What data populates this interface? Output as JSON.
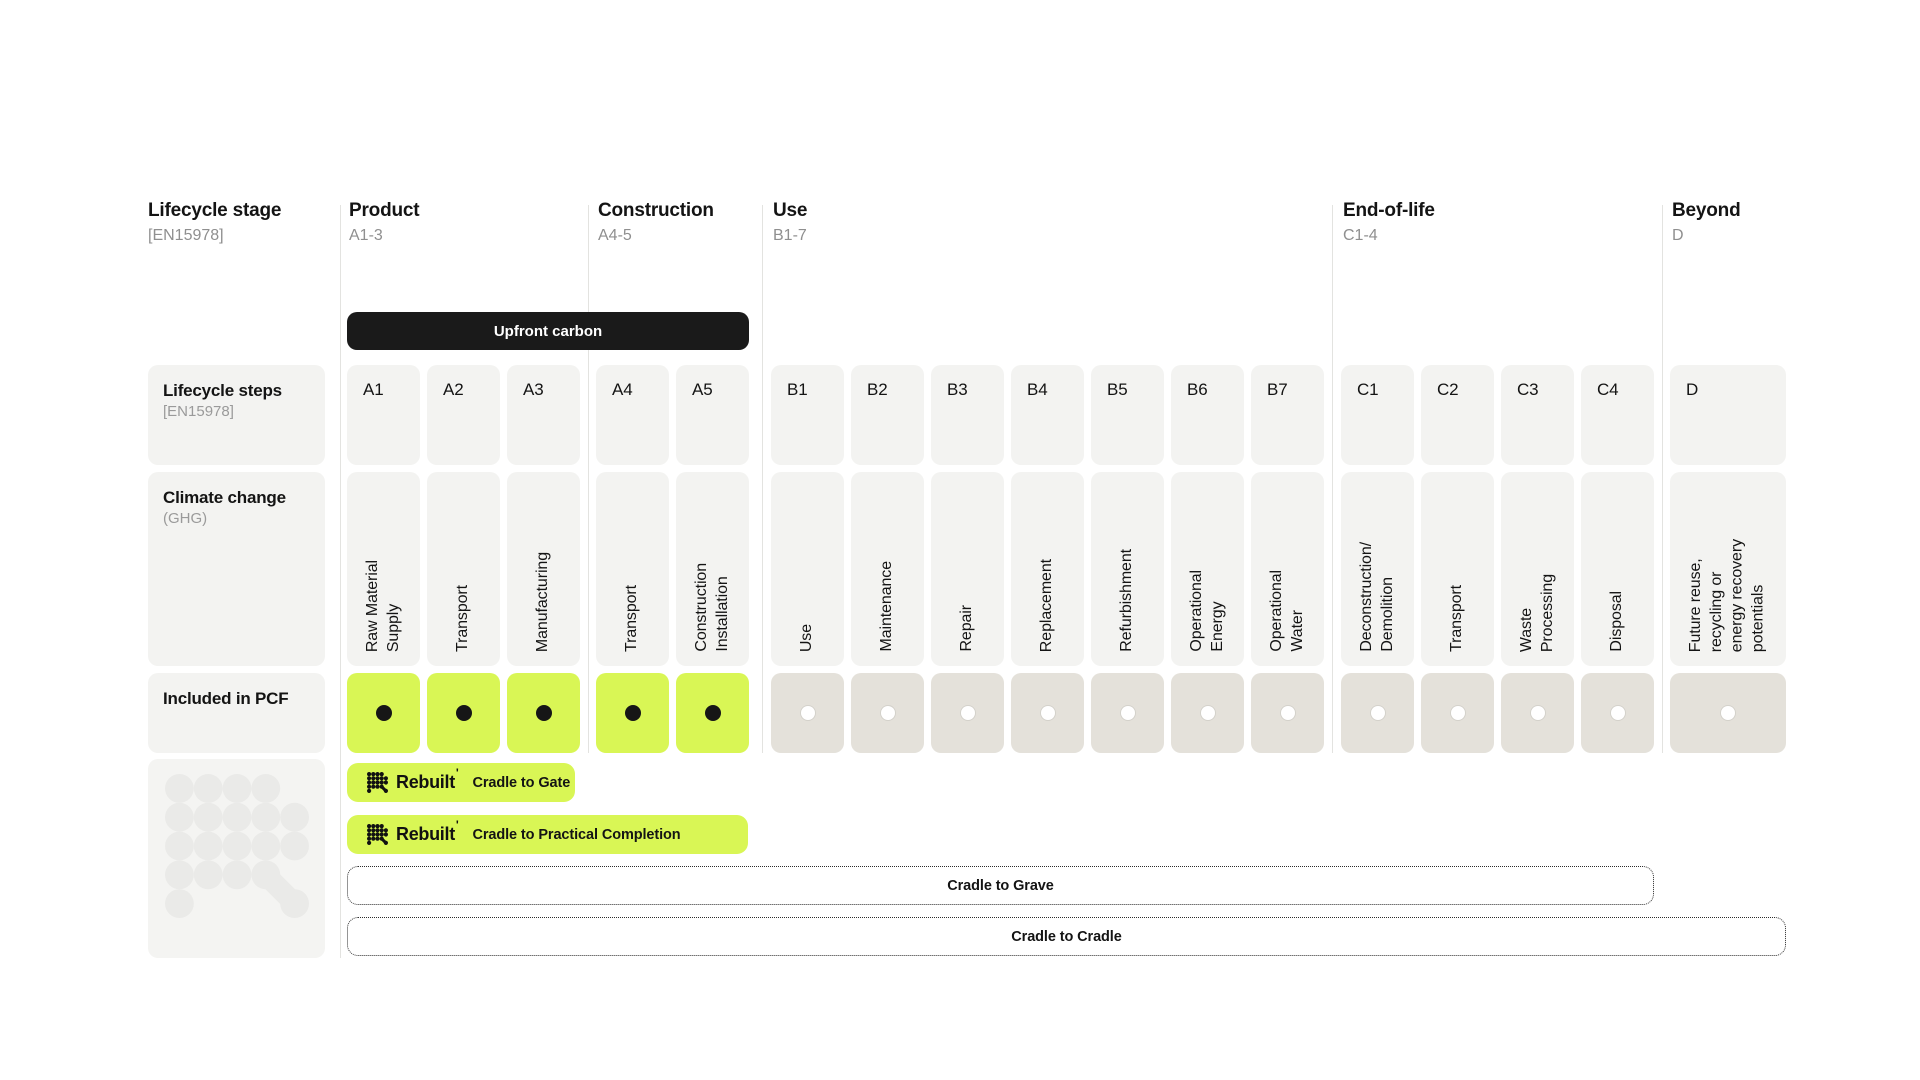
{
  "title": "Lifecycle stage diagram [EN15978]",
  "colors": {
    "accent_lime": "#d9f655",
    "cell_gray": "#f3f3f1",
    "pcf_excluded_gray": "#e4e1da",
    "banner_black": "#1a1a1a",
    "divider_gray": "#e3e3e0",
    "muted_text_gray": "#8f8f8f",
    "deco_dot_gray": "#eaeae8"
  },
  "row_labels": {
    "stage": {
      "title": "Lifecycle stage",
      "code": "[EN15978]"
    },
    "steps": {
      "title": "Lifecycle steps",
      "code": "[EN15978]"
    },
    "impact": {
      "title": "Climate change",
      "code": "(GHG)"
    },
    "pcf": {
      "title": "Included in PCF"
    }
  },
  "banner": {
    "label": "Upfront carbon",
    "spans": "A1-A5"
  },
  "sections": [
    {
      "title": "Product",
      "code": "A1-3",
      "columns": [
        {
          "code": "A1",
          "activity": "Raw Material\nSupply",
          "included": true
        },
        {
          "code": "A2",
          "activity": "Transport",
          "included": true
        },
        {
          "code": "A3",
          "activity": "Manufacturing",
          "included": true
        }
      ]
    },
    {
      "title": "Construction",
      "code": "A4-5",
      "columns": [
        {
          "code": "A4",
          "activity": "Transport",
          "included": true
        },
        {
          "code": "A5",
          "activity": "Construction\nInstallation",
          "included": true
        }
      ]
    },
    {
      "title": "Use",
      "code": "B1-7",
      "columns": [
        {
          "code": "B1",
          "activity": "Use",
          "included": false
        },
        {
          "code": "B2",
          "activity": "Maintenance",
          "included": false
        },
        {
          "code": "B3",
          "activity": "Repair",
          "included": false
        },
        {
          "code": "B4",
          "activity": "Replacement",
          "included": false
        },
        {
          "code": "B5",
          "activity": "Refurbishment",
          "included": false
        },
        {
          "code": "B6",
          "activity": "Operational\nEnergy",
          "included": false
        },
        {
          "code": "B7",
          "activity": "Operational\nWater",
          "included": false
        }
      ]
    },
    {
      "title": "End-of-life",
      "code": "C1-4",
      "columns": [
        {
          "code": "C1",
          "activity": "Deconstruction/\nDemolition",
          "included": false
        },
        {
          "code": "C2",
          "activity": "Transport",
          "included": false
        },
        {
          "code": "C3",
          "activity": "Waste\nProcessing",
          "included": false
        },
        {
          "code": "C4",
          "activity": "Disposal",
          "included": false
        }
      ]
    },
    {
      "title": "Beyond",
      "code": "D",
      "columns": [
        {
          "code": "D",
          "activity": "Future reuse,\nrecycling or\nenergy recovery\npotentials",
          "included": false,
          "wide": true
        }
      ]
    }
  ],
  "brand": {
    "wordmark": "Rebuilt",
    "mark": "'"
  },
  "legend": {
    "items": [
      {
        "style": "brand",
        "label": "Cradle to Gate"
      },
      {
        "style": "brand",
        "label": "Cradle to Practical Completion"
      },
      {
        "style": "dotted",
        "label": "Cradle to Grave"
      },
      {
        "style": "dotted",
        "label": "Cradle to Cradle"
      }
    ]
  }
}
